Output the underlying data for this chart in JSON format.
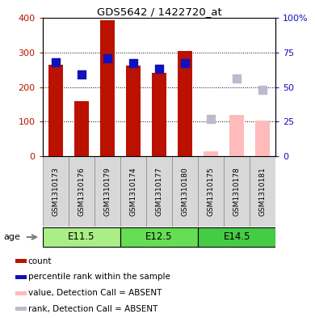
{
  "title": "GDS5642 / 1422720_at",
  "samples": [
    "GSM1310173",
    "GSM1310176",
    "GSM1310179",
    "GSM1310174",
    "GSM1310177",
    "GSM1310180",
    "GSM1310175",
    "GSM1310178",
    "GSM1310181"
  ],
  "age_groups": [
    {
      "label": "E11.5",
      "start": 0,
      "end": 3,
      "color": "#aaee88"
    },
    {
      "label": "E12.5",
      "start": 3,
      "end": 6,
      "color": "#66dd55"
    },
    {
      "label": "E14.5",
      "start": 6,
      "end": 9,
      "color": "#44cc44"
    }
  ],
  "count_values": [
    265,
    158,
    392,
    262,
    242,
    303,
    null,
    null,
    null
  ],
  "rank_values_pct": [
    68,
    59,
    71,
    67,
    63,
    67,
    null,
    null,
    null
  ],
  "absent_count_values": [
    null,
    null,
    null,
    null,
    null,
    null,
    15,
    120,
    104
  ],
  "absent_rank_pct": [
    null,
    null,
    null,
    null,
    null,
    null,
    27,
    56,
    48
  ],
  "count_color": "#bb1100",
  "rank_color": "#1111bb",
  "absent_count_color": "#ffbbbb",
  "absent_rank_color": "#bbbbcc",
  "ylim_left": [
    0,
    400
  ],
  "ylim_right": [
    0,
    100
  ],
  "yticks_left": [
    0,
    100,
    200,
    300,
    400
  ],
  "yticks_right": [
    0,
    25,
    50,
    75,
    100
  ],
  "yticklabels_right": [
    "0",
    "25",
    "50",
    "75",
    "100%"
  ],
  "grid_values": [
    100,
    200,
    300
  ],
  "legend_items": [
    {
      "label": "count",
      "color": "#bb1100"
    },
    {
      "label": "percentile rank within the sample",
      "color": "#1111bb"
    },
    {
      "label": "value, Detection Call = ABSENT",
      "color": "#ffbbbb"
    },
    {
      "label": "rank, Detection Call = ABSENT",
      "color": "#bbbbcc"
    }
  ]
}
